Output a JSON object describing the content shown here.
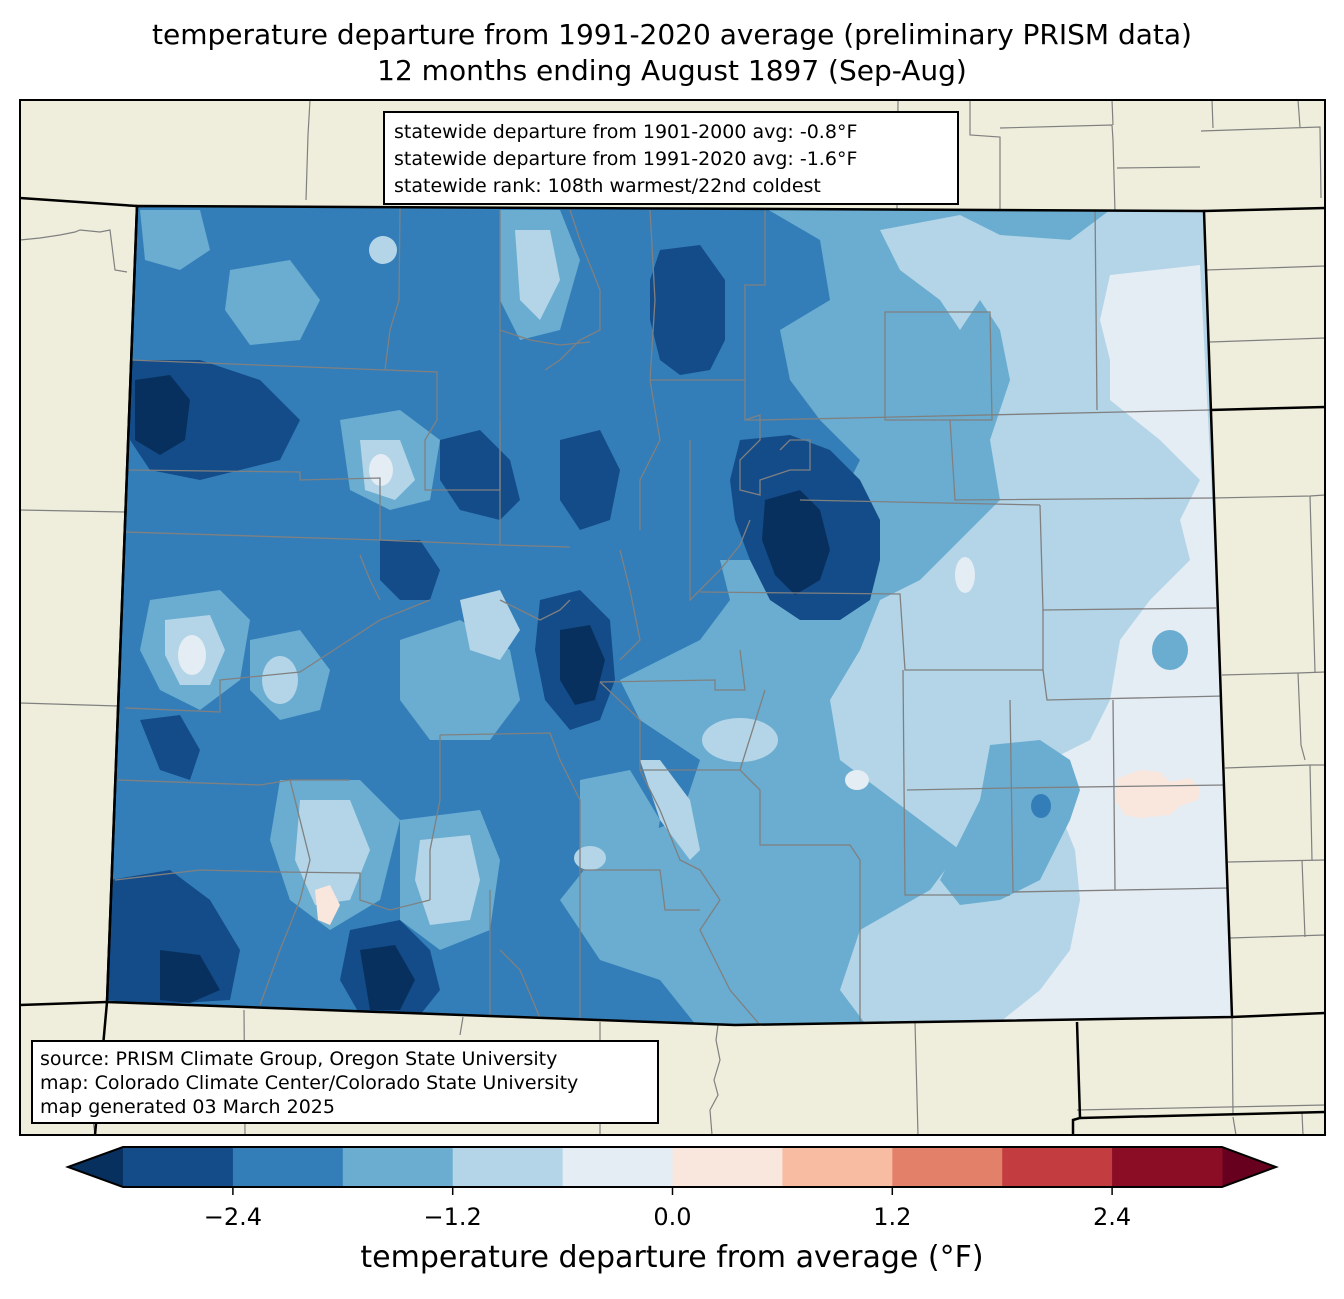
{
  "title": {
    "line1": "temperature departure from 1991-2020 average (preliminary PRISM data)",
    "line2": "12 months ending August 1897 (Sep-Aug)"
  },
  "stats_box": {
    "line1": "statewide departure from 1901-2000 avg: -0.8°F",
    "line2": "statewide departure from 1991-2020 avg: -1.6°F",
    "line3": "statewide rank: 108th warmest/22nd coldest"
  },
  "source_box": {
    "line1": "source: PRISM Climate Group, Oregon State University",
    "line2": "map: Colorado Climate Center/Colorado State University",
    "line3": "map generated 03 March 2025"
  },
  "colors": {
    "land": "#efeedc",
    "county_line": "#808080",
    "state_line": "#000000"
  },
  "colorbar": {
    "label": "temperature departure from average (°F)",
    "ticks": [
      {
        "value": -2.4,
        "label": "−2.4"
      },
      {
        "value": -1.2,
        "label": "−1.2"
      },
      {
        "value": 0.0,
        "label": "0.0"
      },
      {
        "value": 1.2,
        "label": "1.2"
      },
      {
        "value": 2.4,
        "label": "2.4"
      }
    ],
    "range": [
      -3.0,
      3.0
    ],
    "bins": [
      {
        "min": -3.0,
        "max": -2.4,
        "color": "#134c88"
      },
      {
        "min": -2.4,
        "max": -1.8,
        "color": "#337eb8"
      },
      {
        "min": -1.8,
        "max": -1.2,
        "color": "#6aadd0"
      },
      {
        "min": -1.2,
        "max": -0.6,
        "color": "#b3d5e7"
      },
      {
        "min": -0.6,
        "max": 0.0,
        "color": "#e4ecf4"
      },
      {
        "min": 0.0,
        "max": 0.6,
        "color": "#f9e7de"
      },
      {
        "min": 0.6,
        "max": 1.2,
        "color": "#f8bca3"
      },
      {
        "min": 1.2,
        "max": 1.8,
        "color": "#e38069"
      },
      {
        "min": 1.8,
        "max": 2.4,
        "color": "#c33c3f"
      },
      {
        "min": 2.4,
        "max": 3.0,
        "color": "#8a0c25"
      }
    ],
    "under_color": "#08305e",
    "over_color": "#67001f"
  }
}
